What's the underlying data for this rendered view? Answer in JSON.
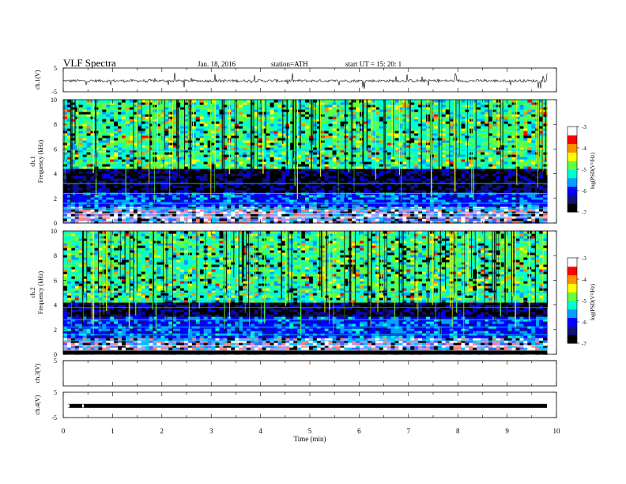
{
  "header": {
    "title": "VLF  Spectra",
    "date": "Jan. 18, 2016",
    "station": "station=ATH",
    "start_ut": "start  UT  =     15: 20: 1"
  },
  "chart_data": [
    {
      "type": "line",
      "panel": "ch1-waveform",
      "ylabel": "ch.1(V)",
      "ylim": [
        -5,
        5
      ],
      "y_ticks": [
        "5",
        "-5"
      ],
      "x_range": [
        0,
        9.8
      ],
      "baseline": -0.4
    },
    {
      "type": "heatmap",
      "panel": "ch1-spectrogram",
      "ylabel": "ch.1\nFrequency (kHz)",
      "ylim": [
        0,
        10
      ],
      "y_ticks": [
        "0",
        "2",
        "4",
        "6",
        "8",
        "10"
      ],
      "x_range": [
        0,
        9.8
      ],
      "colorbar": {
        "label": "log(PSD(V²/Hz)",
        "range": [
          -7,
          -3
        ],
        "ticks": [
          "-3",
          "-4",
          "-5",
          "-6",
          "-7"
        ]
      },
      "strong_band_khz": [
        2.5,
        4.5
      ]
    },
    {
      "type": "heatmap",
      "panel": "ch2-spectrogram",
      "ylabel": "ch.2\nFrequency (kHz)",
      "ylim": [
        0,
        10
      ],
      "y_ticks": [
        "0",
        "2",
        "4",
        "6",
        "8",
        "10"
      ],
      "x_range": [
        0,
        9.8
      ],
      "colorbar": {
        "label": "log(PSD(V²/Hz)",
        "range": [
          -7,
          -3
        ],
        "ticks": [
          "-3",
          "-4",
          "-5",
          "-6",
          "-7"
        ]
      },
      "strong_band_khz": [
        3.0,
        4.3
      ]
    },
    {
      "type": "line",
      "panel": "ch3-waveform",
      "ylabel": "ch.3(V)",
      "ylim": [
        -5,
        5
      ],
      "y_ticks": [
        "5"
      ],
      "x_range": [
        0,
        9.8
      ],
      "baseline": 5
    },
    {
      "type": "line",
      "panel": "ch4-waveform",
      "ylabel": "ch.4(V)",
      "ylim": [
        -5,
        5
      ],
      "y_ticks": [
        "5",
        "-5"
      ],
      "x_range": [
        0,
        9.8
      ],
      "baseline": -0.4
    }
  ],
  "x_axis": {
    "label": "Time  (min)",
    "range": [
      0,
      10
    ],
    "ticks": [
      "0",
      "1",
      "2",
      "3",
      "4",
      "5",
      "6",
      "7",
      "8",
      "9",
      "10"
    ]
  },
  "colormap": [
    "#000000",
    "#10107a",
    "#0000ff",
    "#00a0ff",
    "#00ffd0",
    "#60ff40",
    "#ffff00",
    "#ff9000",
    "#ff0000",
    "#ffffff"
  ]
}
